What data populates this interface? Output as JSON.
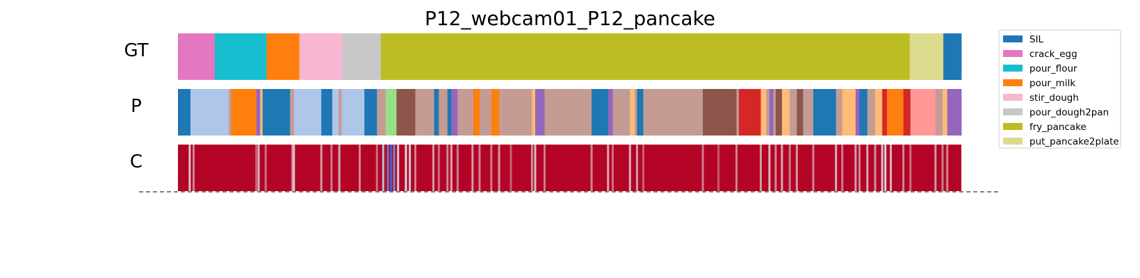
{
  "chart_data": {
    "type": "segmentation",
    "title": "P12_webcam01_P12_pancake",
    "row_labels": [
      "GT",
      "P",
      "C"
    ],
    "x_unit": "fraction of video",
    "colors": {
      "SIL": "#1f77b4",
      "crack_egg": "#e377c2",
      "pour_flour": "#17becf",
      "pour_milk": "#ff7f0e",
      "stir_dough": "#f7b6d2",
      "pour_dough2pan": "#c7c7c7",
      "fry_pancake": "#bcbd22",
      "put_pancake2plate": "#dbdb8d",
      "P_lightblue": "#aec7e8",
      "P_purple": "#9467bd",
      "P_brown": "#8c564b",
      "P_lightbrown": "#c49c94",
      "P_green": "#98df8a",
      "P_red": "#d62728",
      "P_peach": "#ffbb78",
      "P_salmon": "#ff9896"
    },
    "legend": [
      {
        "label": "SIL",
        "color": "#1f77b4"
      },
      {
        "label": "crack_egg",
        "color": "#e377c2"
      },
      {
        "label": "pour_flour",
        "color": "#17becf"
      },
      {
        "label": "pour_milk",
        "color": "#ff7f0e"
      },
      {
        "label": "stir_dough",
        "color": "#f7b6d2"
      },
      {
        "label": "pour_dough2pan",
        "color": "#c7c7c7"
      },
      {
        "label": "fry_pancake",
        "color": "#bcbd22"
      },
      {
        "label": "put_pancake2plate",
        "color": "#dbdb8d"
      }
    ],
    "legend_position": "upper-right",
    "gt_segments": [
      {
        "start": 0.0,
        "end": 0.047,
        "color": "#e377c2"
      },
      {
        "start": 0.047,
        "end": 0.113,
        "color": "#17becf"
      },
      {
        "start": 0.113,
        "end": 0.155,
        "color": "#ff7f0e"
      },
      {
        "start": 0.155,
        "end": 0.21,
        "color": "#f7b6d2"
      },
      {
        "start": 0.21,
        "end": 0.259,
        "color": "#c7c7c7"
      },
      {
        "start": 0.259,
        "end": 0.934,
        "color": "#bcbd22"
      },
      {
        "start": 0.934,
        "end": 0.977,
        "color": "#dbdb8d"
      },
      {
        "start": 0.977,
        "end": 1.0,
        "color": "#1f77b4"
      }
    ],
    "p_segments": [
      {
        "start": 0.0,
        "end": 0.016,
        "color": "#1f77b4"
      },
      {
        "start": 0.016,
        "end": 0.065,
        "color": "#aec7e8"
      },
      {
        "start": 0.065,
        "end": 0.068,
        "color": "#c49c94"
      },
      {
        "start": 0.068,
        "end": 0.1,
        "color": "#ff7f0e"
      },
      {
        "start": 0.1,
        "end": 0.105,
        "color": "#9467bd"
      },
      {
        "start": 0.105,
        "end": 0.108,
        "color": "#ffbb78"
      },
      {
        "start": 0.108,
        "end": 0.143,
        "color": "#1f77b4"
      },
      {
        "start": 0.143,
        "end": 0.148,
        "color": "#c49c94"
      },
      {
        "start": 0.148,
        "end": 0.183,
        "color": "#aec7e8"
      },
      {
        "start": 0.183,
        "end": 0.197,
        "color": "#1f77b4"
      },
      {
        "start": 0.197,
        "end": 0.205,
        "color": "#aec7e8"
      },
      {
        "start": 0.205,
        "end": 0.209,
        "color": "#c49c94"
      },
      {
        "start": 0.209,
        "end": 0.238,
        "color": "#aec7e8"
      },
      {
        "start": 0.238,
        "end": 0.254,
        "color": "#1f77b4"
      },
      {
        "start": 0.254,
        "end": 0.265,
        "color": "#c49c94"
      },
      {
        "start": 0.265,
        "end": 0.279,
        "color": "#98df8a"
      },
      {
        "start": 0.279,
        "end": 0.303,
        "color": "#8c564b"
      },
      {
        "start": 0.303,
        "end": 0.327,
        "color": "#c49c94"
      },
      {
        "start": 0.327,
        "end": 0.333,
        "color": "#1f77b4"
      },
      {
        "start": 0.333,
        "end": 0.344,
        "color": "#c49c94"
      },
      {
        "start": 0.344,
        "end": 0.349,
        "color": "#1f77b4"
      },
      {
        "start": 0.349,
        "end": 0.357,
        "color": "#9467bd"
      },
      {
        "start": 0.357,
        "end": 0.377,
        "color": "#c49c94"
      },
      {
        "start": 0.377,
        "end": 0.385,
        "color": "#ff7f0e"
      },
      {
        "start": 0.385,
        "end": 0.4,
        "color": "#c49c94"
      },
      {
        "start": 0.4,
        "end": 0.41,
        "color": "#ff7f0e"
      },
      {
        "start": 0.41,
        "end": 0.452,
        "color": "#c49c94"
      },
      {
        "start": 0.452,
        "end": 0.456,
        "color": "#ffbb78"
      },
      {
        "start": 0.456,
        "end": 0.468,
        "color": "#9467bd"
      },
      {
        "start": 0.468,
        "end": 0.528,
        "color": "#c49c94"
      },
      {
        "start": 0.528,
        "end": 0.549,
        "color": "#1f77b4"
      },
      {
        "start": 0.549,
        "end": 0.555,
        "color": "#9467bd"
      },
      {
        "start": 0.555,
        "end": 0.577,
        "color": "#c49c94"
      },
      {
        "start": 0.577,
        "end": 0.583,
        "color": "#ffbb78"
      },
      {
        "start": 0.583,
        "end": 0.586,
        "color": "#c49c94"
      },
      {
        "start": 0.586,
        "end": 0.594,
        "color": "#1f77b4"
      },
      {
        "start": 0.594,
        "end": 0.67,
        "color": "#c49c94"
      },
      {
        "start": 0.67,
        "end": 0.713,
        "color": "#8c564b"
      },
      {
        "start": 0.713,
        "end": 0.716,
        "color": "#c49c94"
      },
      {
        "start": 0.716,
        "end": 0.744,
        "color": "#d62728"
      },
      {
        "start": 0.744,
        "end": 0.751,
        "color": "#ffbb78"
      },
      {
        "start": 0.751,
        "end": 0.755,
        "color": "#c49c94"
      },
      {
        "start": 0.755,
        "end": 0.76,
        "color": "#9467bd"
      },
      {
        "start": 0.76,
        "end": 0.763,
        "color": "#c49c94"
      },
      {
        "start": 0.763,
        "end": 0.771,
        "color": "#8c564b"
      },
      {
        "start": 0.771,
        "end": 0.781,
        "color": "#ffbb78"
      },
      {
        "start": 0.781,
        "end": 0.79,
        "color": "#c49c94"
      },
      {
        "start": 0.79,
        "end": 0.798,
        "color": "#8c564b"
      },
      {
        "start": 0.798,
        "end": 0.811,
        "color": "#c49c94"
      },
      {
        "start": 0.811,
        "end": 0.84,
        "color": "#1f77b4"
      },
      {
        "start": 0.84,
        "end": 0.848,
        "color": "#c49c94"
      },
      {
        "start": 0.848,
        "end": 0.865,
        "color": "#ffbb78"
      },
      {
        "start": 0.865,
        "end": 0.87,
        "color": "#9467bd"
      },
      {
        "start": 0.87,
        "end": 0.88,
        "color": "#1f77b4"
      },
      {
        "start": 0.88,
        "end": 0.89,
        "color": "#c49c94"
      },
      {
        "start": 0.89,
        "end": 0.899,
        "color": "#ffbb78"
      },
      {
        "start": 0.899,
        "end": 0.905,
        "color": "#d62728"
      },
      {
        "start": 0.905,
        "end": 0.926,
        "color": "#ff7f0e"
      },
      {
        "start": 0.926,
        "end": 0.935,
        "color": "#d62728"
      },
      {
        "start": 0.935,
        "end": 0.967,
        "color": "#ff9896"
      },
      {
        "start": 0.967,
        "end": 0.976,
        "color": "#c49c94"
      },
      {
        "start": 0.976,
        "end": 0.982,
        "color": "#ffbb78"
      },
      {
        "start": 0.982,
        "end": 1.0,
        "color": "#9467bd"
      }
    ],
    "c_row": {
      "colormap": "coolwarm",
      "base_color": "#b40426",
      "stripes": [
        {
          "x": 0.015,
          "value": 0.55
        },
        {
          "x": 0.02,
          "value": 0.7
        },
        {
          "x": 0.1,
          "value": 0.78
        },
        {
          "x": 0.103,
          "value": 0.6
        },
        {
          "x": 0.112,
          "value": 0.75
        },
        {
          "x": 0.146,
          "value": 0.7
        },
        {
          "x": 0.148,
          "value": 0.55
        },
        {
          "x": 0.183,
          "value": 0.65
        },
        {
          "x": 0.196,
          "value": 0.72
        },
        {
          "x": 0.206,
          "value": 0.62
        },
        {
          "x": 0.232,
          "value": 0.7
        },
        {
          "x": 0.254,
          "value": 0.75
        },
        {
          "x": 0.262,
          "value": 0.4
        },
        {
          "x": 0.268,
          "value": 0.15
        },
        {
          "x": 0.272,
          "value": 0.05
        },
        {
          "x": 0.276,
          "value": 0.2
        },
        {
          "x": 0.281,
          "value": 0.45
        },
        {
          "x": 0.291,
          "value": 0.5
        },
        {
          "x": 0.296,
          "value": 0.55
        },
        {
          "x": 0.303,
          "value": 0.7
        },
        {
          "x": 0.326,
          "value": 0.65
        },
        {
          "x": 0.333,
          "value": 0.75
        },
        {
          "x": 0.344,
          "value": 0.7
        },
        {
          "x": 0.349,
          "value": 0.62
        },
        {
          "x": 0.357,
          "value": 0.72
        },
        {
          "x": 0.376,
          "value": 0.65
        },
        {
          "x": 0.385,
          "value": 0.7
        },
        {
          "x": 0.4,
          "value": 0.72
        },
        {
          "x": 0.41,
          "value": 0.66
        },
        {
          "x": 0.425,
          "value": 0.78
        },
        {
          "x": 0.452,
          "value": 0.68
        },
        {
          "x": 0.456,
          "value": 0.58
        },
        {
          "x": 0.468,
          "value": 0.72
        },
        {
          "x": 0.528,
          "value": 0.7
        },
        {
          "x": 0.549,
          "value": 0.62
        },
        {
          "x": 0.555,
          "value": 0.75
        },
        {
          "x": 0.577,
          "value": 0.6
        },
        {
          "x": 0.586,
          "value": 0.66
        },
        {
          "x": 0.594,
          "value": 0.78
        },
        {
          "x": 0.67,
          "value": 0.72
        },
        {
          "x": 0.69,
          "value": 0.8
        },
        {
          "x": 0.713,
          "value": 0.7
        },
        {
          "x": 0.744,
          "value": 0.65
        },
        {
          "x": 0.755,
          "value": 0.58
        },
        {
          "x": 0.763,
          "value": 0.7
        },
        {
          "x": 0.771,
          "value": 0.62
        },
        {
          "x": 0.781,
          "value": 0.72
        },
        {
          "x": 0.79,
          "value": 0.66
        },
        {
          "x": 0.811,
          "value": 0.7
        },
        {
          "x": 0.84,
          "value": 0.6
        },
        {
          "x": 0.848,
          "value": 0.72
        },
        {
          "x": 0.865,
          "value": 0.64
        },
        {
          "x": 0.87,
          "value": 0.7
        },
        {
          "x": 0.88,
          "value": 0.62
        },
        {
          "x": 0.89,
          "value": 0.68
        },
        {
          "x": 0.899,
          "value": 0.55
        },
        {
          "x": 0.903,
          "value": 0.48
        },
        {
          "x": 0.91,
          "value": 0.6
        },
        {
          "x": 0.926,
          "value": 0.7
        },
        {
          "x": 0.935,
          "value": 0.75
        },
        {
          "x": 0.967,
          "value": 0.66
        },
        {
          "x": 0.976,
          "value": 0.72
        },
        {
          "x": 0.982,
          "value": 0.7
        }
      ]
    }
  }
}
